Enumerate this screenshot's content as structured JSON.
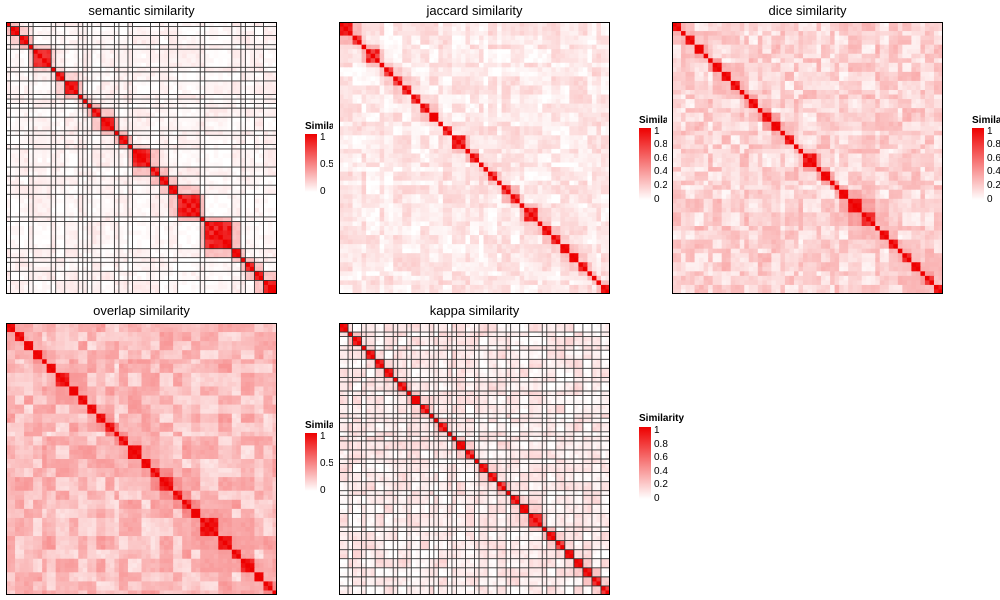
{
  "colors": {
    "high": "#EE0000",
    "low": "#FFFFFF",
    "border": "#000000",
    "grid": "#333333"
  },
  "chart_data": [
    {
      "type": "heatmap",
      "title": "semantic similarity",
      "n": 60,
      "bands": [
        [
          0,
          1
        ],
        [
          1,
          3
        ],
        [
          3,
          5
        ],
        [
          5,
          6
        ],
        [
          6,
          10
        ],
        [
          10,
          11
        ],
        [
          11,
          13
        ],
        [
          13,
          16
        ],
        [
          16,
          17
        ],
        [
          17,
          18
        ],
        [
          18,
          19
        ],
        [
          19,
          21
        ],
        [
          21,
          24
        ],
        [
          24,
          25
        ],
        [
          25,
          27
        ],
        [
          27,
          28
        ],
        [
          28,
          32
        ],
        [
          32,
          34
        ],
        [
          34,
          36
        ],
        [
          36,
          38
        ],
        [
          38,
          43
        ],
        [
          43,
          44
        ],
        [
          44,
          50
        ],
        [
          50,
          52
        ],
        [
          52,
          53
        ],
        [
          53,
          55
        ],
        [
          55,
          57
        ],
        [
          57,
          60
        ]
      ],
      "within": [
        0.75,
        1.0
      ],
      "background": [
        0.0,
        0.08
      ],
      "nearblock": [
        0.15,
        0.3
      ],
      "gridlines": true,
      "legend": {
        "title": "Similarity",
        "ticks": [
          "1",
          "0.5",
          "0"
        ]
      }
    },
    {
      "type": "heatmap",
      "title": "jaccard similarity",
      "n": 60,
      "bands": [
        [
          0,
          3
        ],
        [
          3,
          5
        ],
        [
          5,
          6
        ],
        [
          6,
          9
        ],
        [
          9,
          10
        ],
        [
          10,
          12
        ],
        [
          12,
          14
        ],
        [
          14,
          16
        ],
        [
          16,
          18
        ],
        [
          18,
          20
        ],
        [
          20,
          22
        ],
        [
          22,
          23
        ],
        [
          23,
          25
        ],
        [
          25,
          28
        ],
        [
          28,
          29
        ],
        [
          29,
          31
        ],
        [
          31,
          32
        ],
        [
          32,
          33
        ],
        [
          33,
          35
        ],
        [
          35,
          36
        ],
        [
          36,
          38
        ],
        [
          38,
          40
        ],
        [
          40,
          41
        ],
        [
          41,
          44
        ],
        [
          44,
          45
        ],
        [
          45,
          47
        ],
        [
          47,
          49
        ],
        [
          49,
          51
        ],
        [
          51,
          53
        ],
        [
          53,
          55
        ],
        [
          55,
          56
        ],
        [
          56,
          57
        ],
        [
          57,
          58
        ],
        [
          58,
          60
        ]
      ],
      "within": [
        0.7,
        1.0
      ],
      "background": [
        0.0,
        0.18
      ],
      "nearblock": [
        0.1,
        0.3
      ],
      "gridlines": false,
      "legend": {
        "title": "Similarity",
        "ticks": [
          "1",
          "0.8",
          "0.6",
          "0.4",
          "0.2",
          "0"
        ]
      }
    },
    {
      "type": "heatmap",
      "title": "dice similarity",
      "n": 60,
      "bands": [
        [
          0,
          2
        ],
        [
          2,
          3
        ],
        [
          3,
          5
        ],
        [
          5,
          7
        ],
        [
          7,
          8
        ],
        [
          8,
          9
        ],
        [
          9,
          11
        ],
        [
          11,
          13
        ],
        [
          13,
          15
        ],
        [
          15,
          16
        ],
        [
          16,
          17
        ],
        [
          17,
          19
        ],
        [
          19,
          20
        ],
        [
          20,
          22
        ],
        [
          22,
          24
        ],
        [
          24,
          25
        ],
        [
          25,
          27
        ],
        [
          27,
          28
        ],
        [
          28,
          29
        ],
        [
          29,
          32
        ],
        [
          32,
          33
        ],
        [
          33,
          35
        ],
        [
          35,
          36
        ],
        [
          36,
          37
        ],
        [
          37,
          39
        ],
        [
          39,
          42
        ],
        [
          42,
          45
        ],
        [
          45,
          46
        ],
        [
          46,
          48
        ],
        [
          48,
          50
        ],
        [
          50,
          51
        ],
        [
          51,
          53
        ],
        [
          53,
          55
        ],
        [
          55,
          56
        ],
        [
          56,
          58
        ],
        [
          58,
          60
        ]
      ],
      "within": [
        0.75,
        1.0
      ],
      "background": [
        0.05,
        0.3
      ],
      "nearblock": [
        0.2,
        0.4
      ],
      "gridlines": false,
      "legend": {
        "title": "Similarity",
        "ticks": [
          "1",
          "0.8",
          "0.6",
          "0.4",
          "0.2",
          "0"
        ]
      }
    },
    {
      "type": "heatmap",
      "title": "overlap similarity",
      "n": 60,
      "bands": [
        [
          0,
          2
        ],
        [
          2,
          4
        ],
        [
          4,
          6
        ],
        [
          6,
          8
        ],
        [
          8,
          9
        ],
        [
          9,
          11
        ],
        [
          11,
          14
        ],
        [
          14,
          16
        ],
        [
          16,
          18
        ],
        [
          18,
          20
        ],
        [
          20,
          22
        ],
        [
          22,
          24
        ],
        [
          24,
          25
        ],
        [
          25,
          27
        ],
        [
          27,
          30
        ],
        [
          30,
          32
        ],
        [
          32,
          34
        ],
        [
          34,
          37
        ],
        [
          37,
          39
        ],
        [
          39,
          41
        ],
        [
          41,
          43
        ],
        [
          43,
          47
        ],
        [
          47,
          50
        ],
        [
          50,
          52
        ],
        [
          52,
          55
        ],
        [
          55,
          57
        ],
        [
          57,
          59
        ],
        [
          59,
          60
        ]
      ],
      "within": [
        0.8,
        1.0
      ],
      "background": [
        0.12,
        0.4
      ],
      "nearblock": [
        0.25,
        0.5
      ],
      "gridlines": false,
      "legend": {
        "title": "Similarity",
        "ticks": [
          "1",
          "0.5",
          "0"
        ]
      }
    },
    {
      "type": "heatmap",
      "title": "kappa similarity",
      "n": 60,
      "bands": [
        [
          0,
          2
        ],
        [
          2,
          3
        ],
        [
          3,
          5
        ],
        [
          5,
          6
        ],
        [
          6,
          8
        ],
        [
          8,
          10
        ],
        [
          10,
          12
        ],
        [
          12,
          13
        ],
        [
          13,
          15
        ],
        [
          15,
          16
        ],
        [
          16,
          18
        ],
        [
          18,
          20
        ],
        [
          20,
          21
        ],
        [
          21,
          22
        ],
        [
          22,
          24
        ],
        [
          24,
          25
        ],
        [
          25,
          26
        ],
        [
          26,
          28
        ],
        [
          28,
          30
        ],
        [
          30,
          31
        ],
        [
          31,
          33
        ],
        [
          33,
          35
        ],
        [
          35,
          37
        ],
        [
          37,
          38
        ],
        [
          38,
          40
        ],
        [
          40,
          42
        ],
        [
          42,
          45
        ],
        [
          45,
          46
        ],
        [
          46,
          48
        ],
        [
          48,
          50
        ],
        [
          50,
          52
        ],
        [
          52,
          54
        ],
        [
          54,
          56
        ],
        [
          56,
          58
        ],
        [
          58,
          60
        ]
      ],
      "within": [
        0.7,
        1.0
      ],
      "background": [
        0.0,
        0.15
      ],
      "nearblock": [
        0.1,
        0.25
      ],
      "gridlines": true,
      "legend": {
        "title": "Similarity",
        "ticks": [
          "1",
          "0.8",
          "0.6",
          "0.4",
          "0.2",
          "0"
        ]
      }
    }
  ]
}
